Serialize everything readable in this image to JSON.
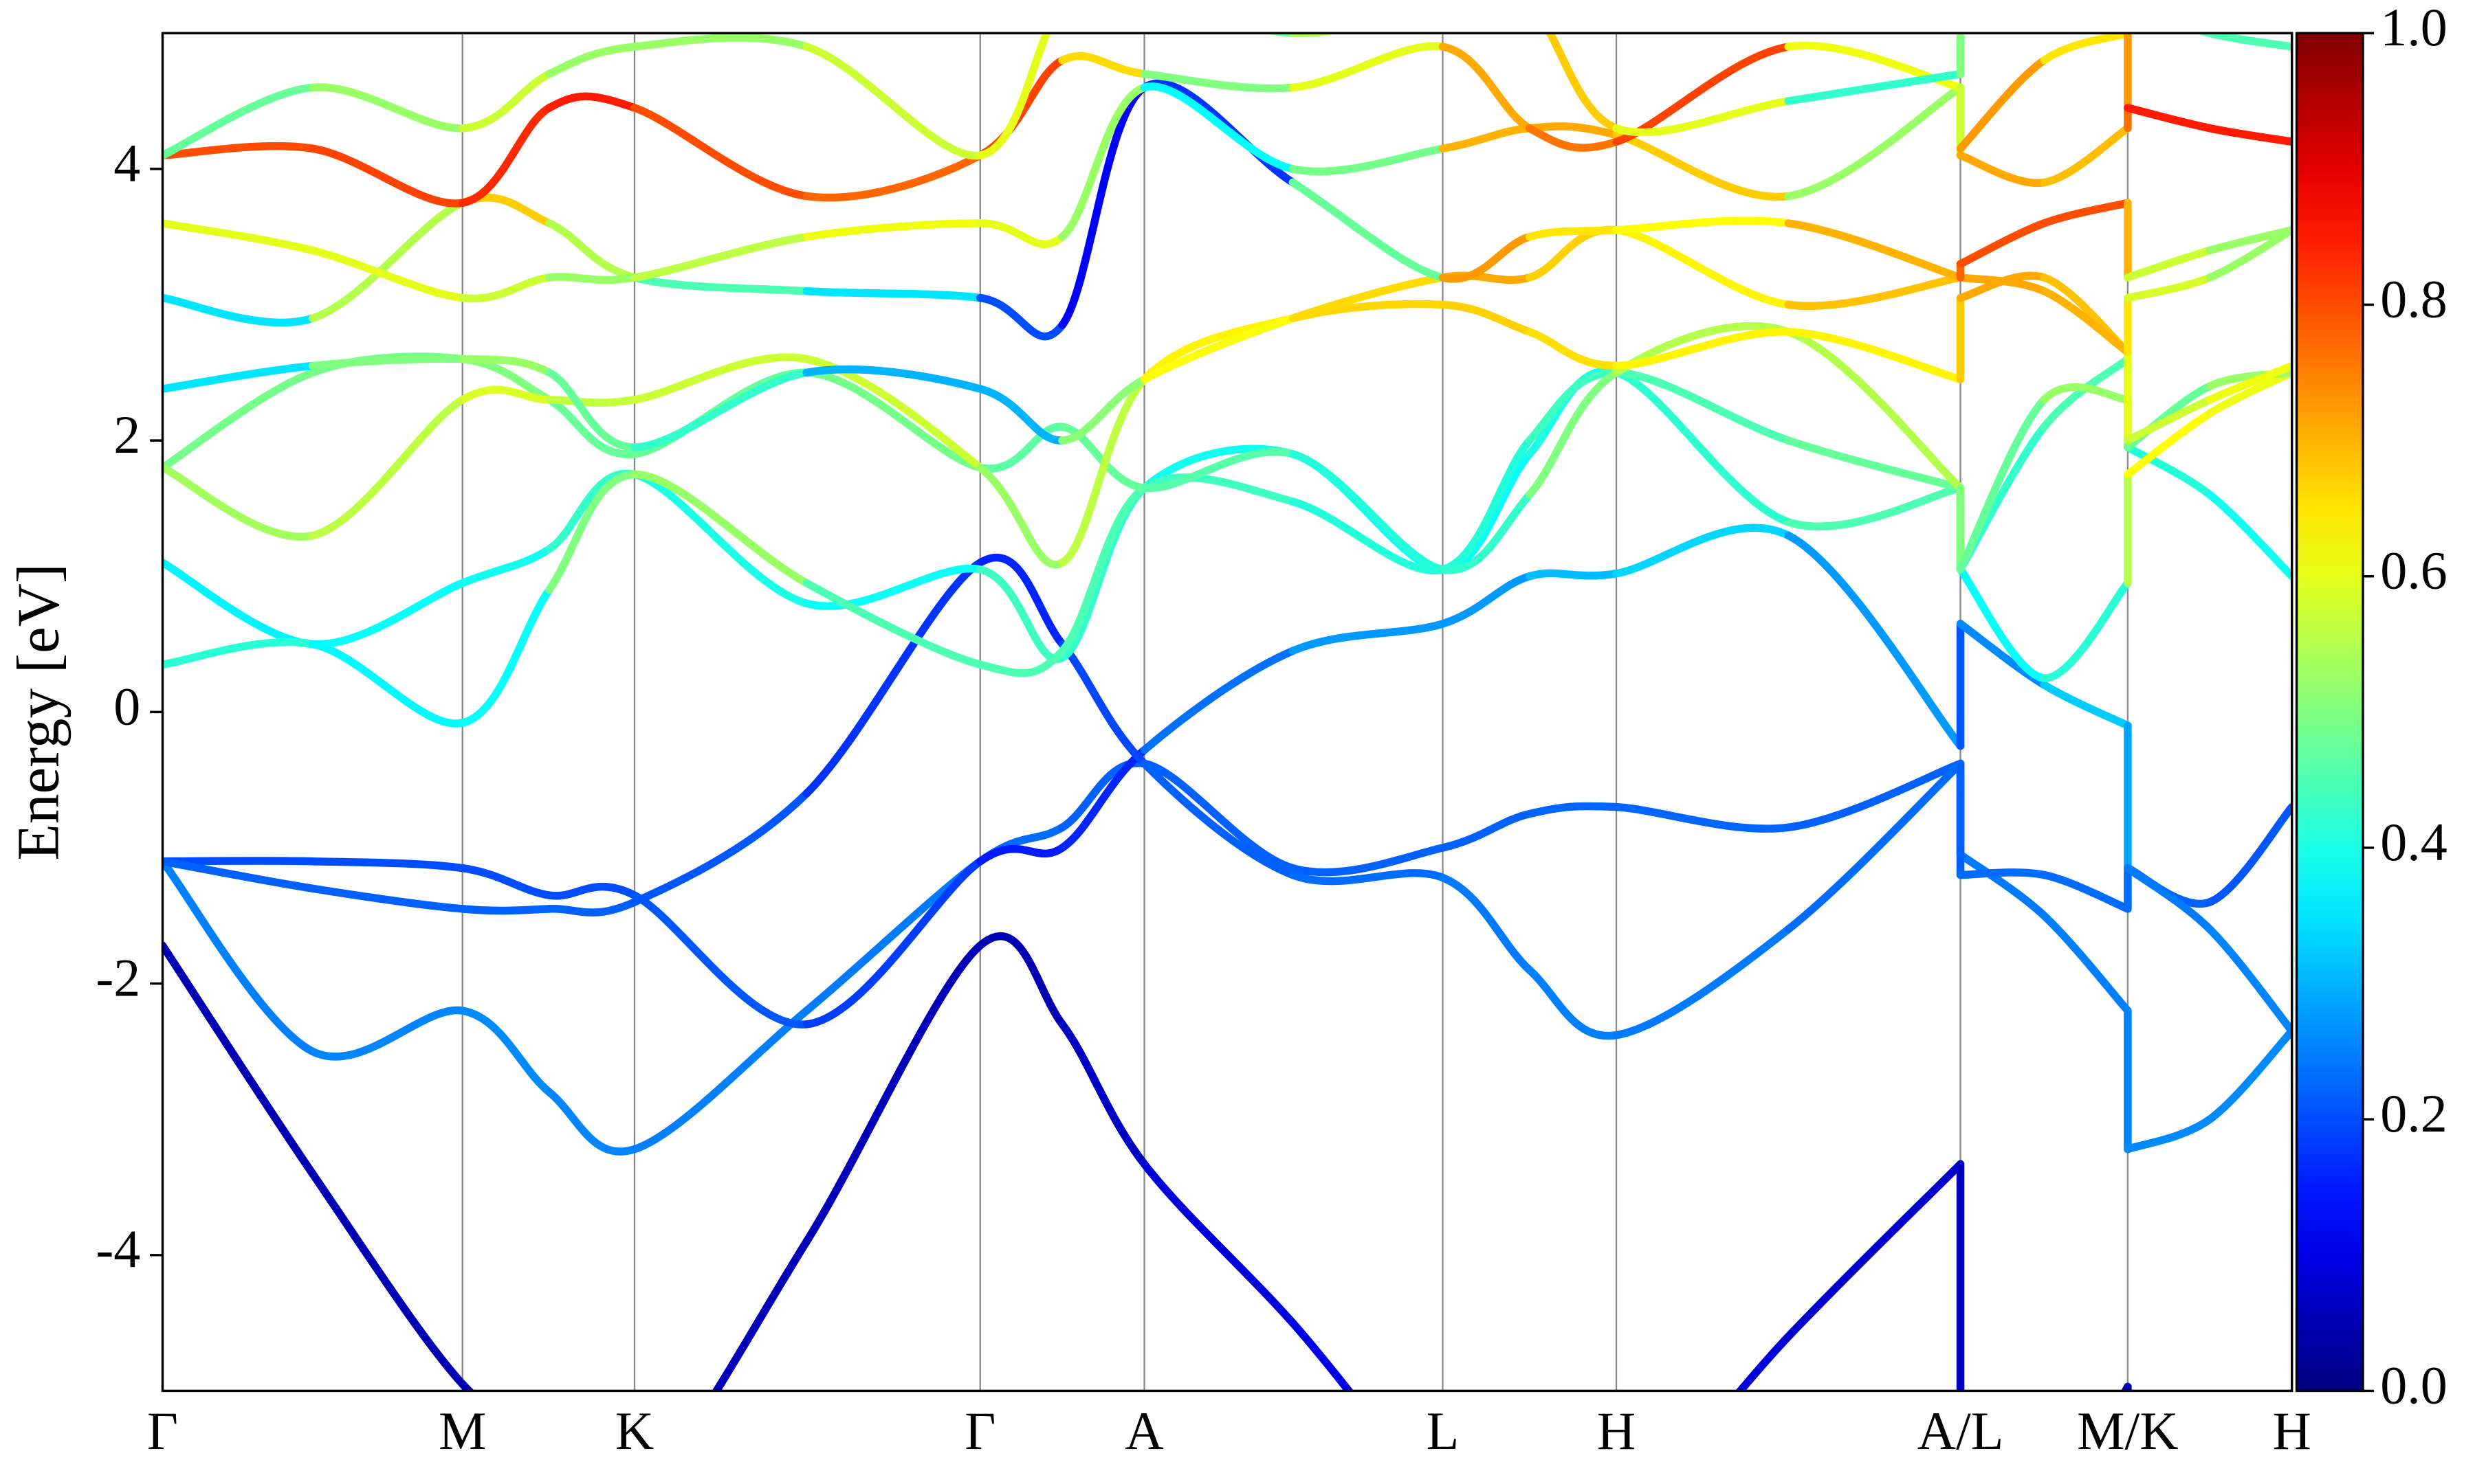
{
  "chart_data": {
    "type": "line",
    "ylabel": "Energy [eV]",
    "x": [
      0,
      0.95,
      1.9,
      2.45,
      2.99,
      4.08,
      5.18,
      5.7,
      6.22,
      7.16,
      8.11,
      8.66,
      9.21,
      10.3,
      11.39,
      11.39,
      11.92,
      12.45,
      12.45,
      12.97,
      13.49
    ],
    "xlim": [
      0,
      13.49
    ],
    "xticks": [
      {
        "value": 0,
        "label": "Γ"
      },
      {
        "value": 1.9,
        "label": "M"
      },
      {
        "value": 2.99,
        "label": "K"
      },
      {
        "value": 5.18,
        "label": "Γ"
      },
      {
        "value": 6.22,
        "label": "A"
      },
      {
        "value": 8.11,
        "label": "L"
      },
      {
        "value": 9.21,
        "label": "H"
      },
      {
        "value": 11.39,
        "label": "A/L"
      },
      {
        "value": 12.45,
        "label": "M/K"
      },
      {
        "value": 13.49,
        "label": "H"
      }
    ],
    "ylim": [
      -5,
      5
    ],
    "yticks": [
      -4,
      -2,
      0,
      2,
      4
    ],
    "grid_x": true,
    "colormap": "jet",
    "series": [
      {
        "values": [
          -1.72,
          -3.4,
          -4.95,
          -5.3,
          -5.8,
          -3.9,
          -1.72,
          -2.3,
          -3.33,
          -4.5,
          -5.8,
          -6,
          -6,
          -4.6,
          -3.33,
          -5.5,
          -6,
          -4.97,
          -6,
          -6,
          -6
        ],
        "weights": [
          0.05,
          0.05,
          0.05,
          0.05,
          0.05,
          0.06,
          0.05,
          0.05,
          0.08,
          0.1,
          0.1,
          0.1,
          0.1,
          0.08,
          0.07,
          0.05,
          0.05,
          0.05,
          0.05,
          0.05,
          0.05
        ]
      },
      {
        "values": [
          -1.1,
          -2.5,
          -2.2,
          -2.8,
          -3.22,
          -2.2,
          -1.1,
          -0.85,
          -0.38,
          -1.15,
          -1.0,
          -0.75,
          -0.7,
          -0.85,
          -0.38,
          -1.05,
          -1.5,
          -2.2,
          -3.22,
          -3.0,
          -2.35
        ],
        "weights": [
          0.25,
          0.25,
          0.26,
          0.26,
          0.25,
          0.25,
          0.24,
          0.22,
          0.22,
          0.22,
          0.22,
          0.22,
          0.23,
          0.22,
          0.22,
          0.24,
          0.25,
          0.25,
          0.26,
          0.26,
          0.26
        ]
      },
      {
        "values": [
          -1.1,
          -1.1,
          -1.15,
          -1.35,
          -1.35,
          -2.3,
          -1.1,
          -1.0,
          -0.28,
          0.45,
          0.65,
          1.0,
          1.02,
          1.3,
          -0.25,
          0.65,
          0.2,
          -0.1,
          -1.15,
          -1.4,
          -0.7
        ],
        "weights": [
          0.2,
          0.2,
          0.2,
          0.2,
          0.2,
          0.22,
          0.15,
          0.15,
          0.17,
          0.3,
          0.25,
          0.3,
          0.32,
          0.35,
          0.2,
          0.22,
          0.3,
          0.35,
          0.22,
          0.22,
          0.2
        ]
      },
      {
        "values": [
          -1.1,
          -1.3,
          -1.45,
          -1.45,
          -1.4,
          -0.6,
          1.1,
          0.5,
          -0.38,
          -1.2,
          -1.22,
          -1.9,
          -2.38,
          -1.6,
          -0.38,
          -1.2,
          -1.2,
          -1.45,
          -1.15,
          -1.6,
          -2.35
        ],
        "weights": [
          0.22,
          0.22,
          0.22,
          0.22,
          0.22,
          0.2,
          0.15,
          0.17,
          0.22,
          0.22,
          0.24,
          0.25,
          0.25,
          0.24,
          0.22,
          0.22,
          0.24,
          0.22,
          0.24,
          0.25,
          0.26
        ]
      },
      {
        "values": [
          1.1,
          0.5,
          0.95,
          1.2,
          1.75,
          0.8,
          1.05,
          0.4,
          1.65,
          1.9,
          1.05,
          1.9,
          2.5,
          1.4,
          1.65,
          1.05,
          2.1,
          2.6,
          1.95,
          1.6,
          1.0
        ],
        "weights": [
          0.35,
          0.38,
          0.38,
          0.4,
          0.45,
          0.35,
          0.42,
          0.45,
          0.4,
          0.38,
          0.38,
          0.38,
          0.42,
          0.42,
          0.48,
          0.4,
          0.45,
          0.45,
          0.42,
          0.4,
          0.38
        ]
      },
      {
        "values": [
          0.35,
          0.5,
          -0.08,
          0.9,
          1.75,
          0.95,
          0.35,
          0.45,
          1.65,
          1.55,
          1.05,
          2.0,
          2.5,
          2.0,
          1.65,
          1.05,
          0.25,
          0.95,
          1.75,
          2.2,
          2.5
        ],
        "weights": [
          0.45,
          0.38,
          0.36,
          0.4,
          0.6,
          0.45,
          0.45,
          0.45,
          0.45,
          0.42,
          0.4,
          0.42,
          0.45,
          0.45,
          0.5,
          0.38,
          0.38,
          0.45,
          0.65,
          0.6,
          0.62
        ]
      },
      {
        "values": [
          1.8,
          2.5,
          2.6,
          2.3,
          1.9,
          2.5,
          1.8,
          2.1,
          1.65,
          1.9,
          1.05,
          1.6,
          2.5,
          2.8,
          1.65,
          1.05,
          2.3,
          2.3,
          1.95,
          2.4,
          2.5
        ],
        "weights": [
          0.5,
          0.48,
          0.5,
          0.5,
          0.45,
          0.5,
          0.48,
          0.45,
          0.5,
          0.42,
          0.4,
          0.45,
          0.55,
          0.55,
          0.55,
          0.45,
          0.5,
          0.55,
          0.45,
          0.5,
          0.55
        ]
      },
      {
        "values": [
          1.8,
          1.3,
          2.3,
          2.3,
          2.3,
          2.6,
          1.8,
          1.1,
          2.45,
          2.9,
          3.0,
          2.8,
          2.55,
          2.8,
          2.45,
          3.05,
          3.2,
          2.65,
          2.0,
          2.3,
          2.55
        ],
        "weights": [
          0.55,
          0.52,
          0.6,
          0.58,
          0.55,
          0.6,
          0.55,
          0.5,
          0.62,
          0.65,
          0.68,
          0.66,
          0.65,
          0.62,
          0.65,
          0.7,
          0.72,
          0.65,
          0.55,
          0.6,
          0.62
        ]
      },
      {
        "values": [
          2.38,
          2.55,
          2.6,
          2.5,
          1.95,
          2.5,
          2.38,
          2.0,
          2.45,
          2.9,
          3.2,
          3.2,
          3.55,
          3.0,
          3.2,
          3.2,
          3.1,
          2.65,
          3.05,
          3.2,
          3.55
        ],
        "weights": [
          0.25,
          0.45,
          0.55,
          0.5,
          0.45,
          0.4,
          0.2,
          0.4,
          0.62,
          0.62,
          0.7,
          0.72,
          0.62,
          0.65,
          0.72,
          0.7,
          0.72,
          0.68,
          0.62,
          0.55,
          0.5
        ]
      },
      {
        "values": [
          3.05,
          2.9,
          3.75,
          3.6,
          3.2,
          3.1,
          3.05,
          2.85,
          4.6,
          3.9,
          3.2,
          3.5,
          3.55,
          3.6,
          3.2,
          3.3,
          3.6,
          3.75,
          3.2,
          3.4,
          3.55
        ],
        "weights": [
          0.35,
          0.35,
          0.75,
          0.6,
          0.5,
          0.4,
          0.3,
          0.1,
          0.15,
          0.2,
          0.75,
          0.7,
          0.6,
          0.65,
          0.75,
          0.8,
          0.8,
          0.8,
          0.6,
          0.55,
          0.5
        ]
      },
      {
        "values": [
          3.6,
          3.4,
          3.05,
          3.2,
          3.2,
          3.5,
          3.6,
          3.5,
          4.6,
          4.0,
          4.15,
          4.3,
          4.25,
          3.8,
          4.6,
          4.1,
          3.9,
          4.3,
          4.45,
          4.3,
          4.2
        ],
        "weights": [
          0.6,
          0.6,
          0.6,
          0.55,
          0.5,
          0.62,
          0.6,
          0.6,
          0.45,
          0.3,
          0.68,
          0.72,
          0.7,
          0.65,
          0.4,
          0.72,
          0.7,
          0.68,
          0.85,
          0.85,
          0.85
        ]
      },
      {
        "values": [
          4.1,
          4.15,
          3.75,
          4.45,
          4.45,
          3.8,
          4.1,
          4.8,
          4.7,
          4.6,
          4.9,
          4.3,
          4.2,
          4.9,
          4.6,
          4.15,
          4.8,
          5.0,
          4.45,
          4.3,
          4.2
        ],
        "weights": [
          0.8,
          0.8,
          0.82,
          0.85,
          0.85,
          0.75,
          0.8,
          0.82,
          0.5,
          0.5,
          0.7,
          0.72,
          0.8,
          0.82,
          0.4,
          0.75,
          0.7,
          0.6,
          0.85,
          0.85,
          0.85
        ]
      },
      {
        "values": [
          4.1,
          4.6,
          4.3,
          4.7,
          4.9,
          4.9,
          4.1,
          5.2,
          5.3,
          5.0,
          5.2,
          5.2,
          4.3,
          4.5,
          4.7,
          5.2,
          5.2,
          5.2,
          5.2,
          5.0,
          4.9
        ],
        "weights": [
          0.5,
          0.45,
          0.6,
          0.55,
          0.5,
          0.55,
          0.6,
          0.6,
          0.45,
          0.5,
          0.6,
          0.6,
          0.75,
          0.45,
          0.4,
          0.6,
          0.55,
          0.55,
          0.45,
          0.45,
          0.45
        ]
      }
    ],
    "colorbar": {
      "lim": [
        0,
        1
      ],
      "ticks": [
        {
          "value": 0,
          "label": "0.0"
        },
        0.2,
        0.4,
        0.6,
        0.8,
        {
          "value": 1,
          "label": "1.0"
        }
      ]
    }
  }
}
